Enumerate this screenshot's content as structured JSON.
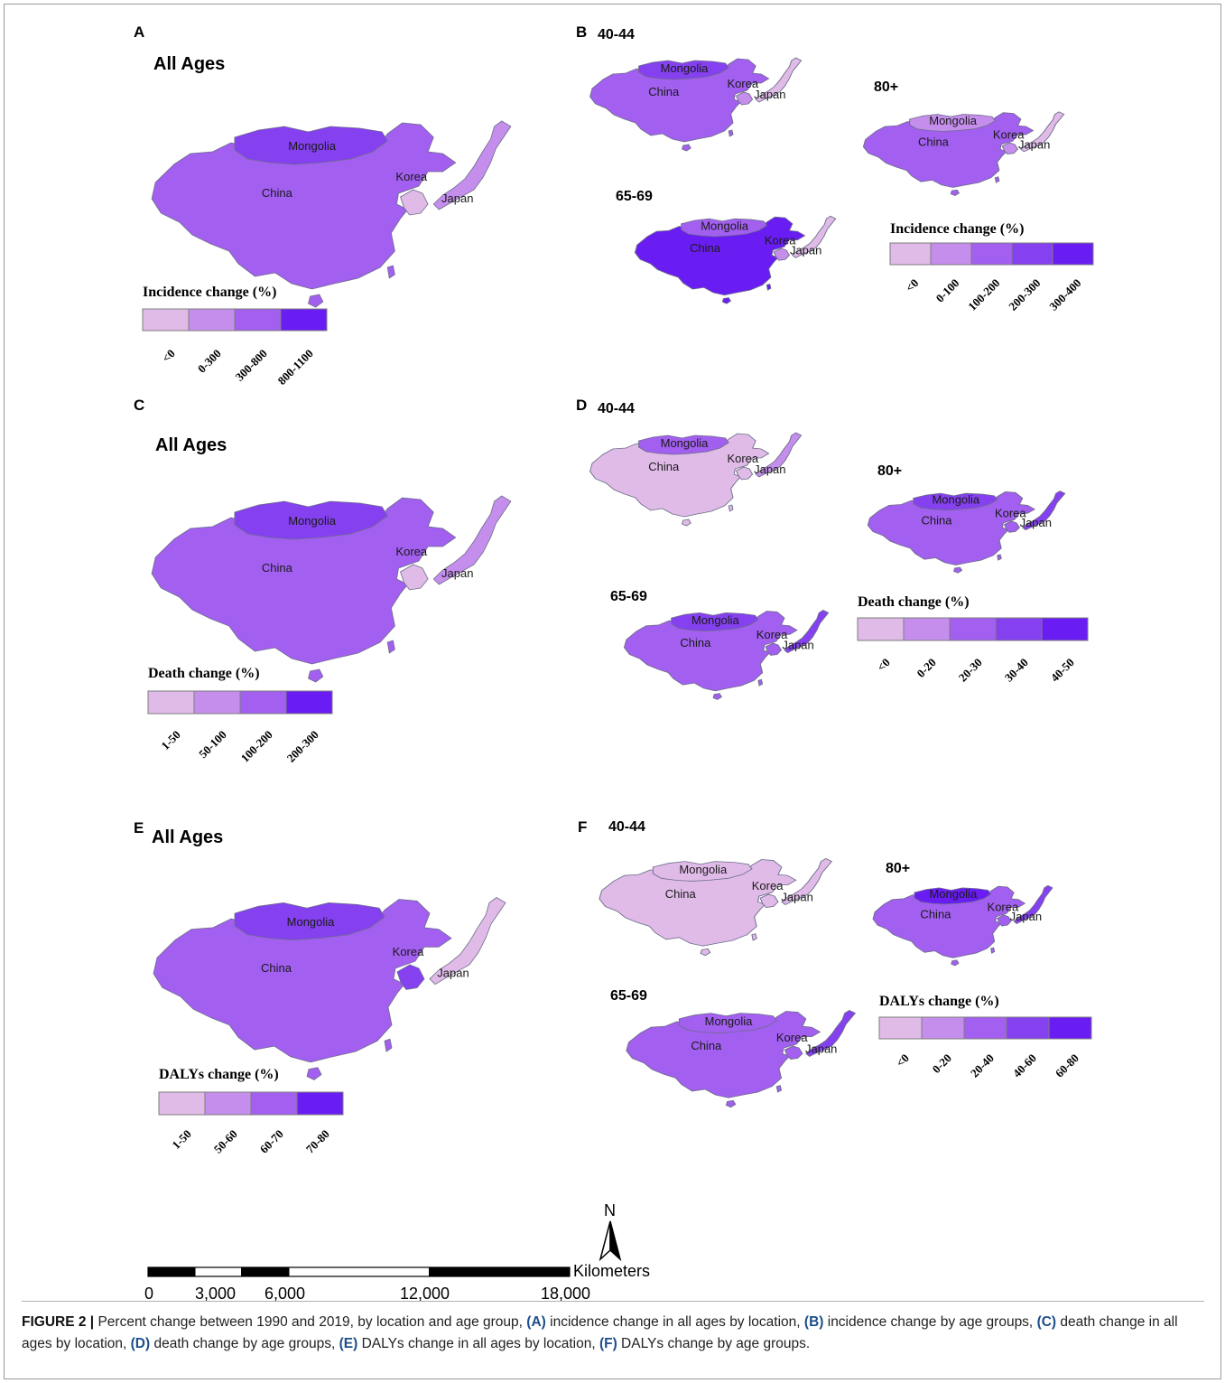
{
  "colors": {
    "c1": "#e0bbe8",
    "c2": "#c58eec",
    "c3": "#a25ff0",
    "c4": "#8540f0",
    "c5": "#6a1df2",
    "border": "#6e6e8a"
  },
  "panels": {
    "A": {
      "letter": "A",
      "title": "All Ages",
      "legend": {
        "title": "Incidence change (%)",
        "ticks": [
          "<0",
          "0-300",
          "300-800",
          "800-1100"
        ]
      }
    },
    "B": {
      "letter": "B",
      "maps": {
        "m1": "40-44",
        "m2": "80+",
        "m3": "65-69"
      },
      "legend": {
        "title": "Incidence change (%)",
        "ticks": [
          "<0",
          "0-100",
          "100-200",
          "200-300",
          "300-400"
        ]
      }
    },
    "C": {
      "letter": "C",
      "title": "All Ages",
      "legend": {
        "title": "Death change (%)",
        "ticks": [
          "1-50",
          "50-100",
          "100-200",
          "200-300"
        ]
      }
    },
    "D": {
      "letter": "D",
      "maps": {
        "m1": "40-44",
        "m2": "80+",
        "m3": "65-69"
      },
      "legend": {
        "title": "Death change (%)",
        "ticks": [
          "<0",
          "0-20",
          "20-30",
          "30-40",
          "40-50"
        ]
      }
    },
    "E": {
      "letter": "E",
      "title": "All Ages",
      "legend": {
        "title": "DALYs change (%)",
        "ticks": [
          "1-50",
          "50-60",
          "60-70",
          "70-80"
        ]
      }
    },
    "F": {
      "letter": "F",
      "maps": {
        "m1": "40-44",
        "m2": "80+",
        "m3": "65-69"
      },
      "legend": {
        "title": "DALYs change (%)",
        "ticks": [
          "<0",
          "0-20",
          "20-40",
          "40-60",
          "60-80"
        ]
      }
    }
  },
  "countries": {
    "mongolia": "Mongolia",
    "china": "China",
    "korea": "Korea",
    "japan": "Japan"
  },
  "maps": [
    {
      "id": "A",
      "fill": {
        "mongolia": "c4",
        "china": "c3",
        "korea": "c1",
        "japan": "c2"
      }
    },
    {
      "id": "B1",
      "fill": {
        "mongolia": "c4",
        "china": "c3",
        "korea": "c2",
        "japan": "c1"
      }
    },
    {
      "id": "B2",
      "fill": {
        "mongolia": "c2",
        "china": "c3",
        "korea": "c2",
        "japan": "c1"
      }
    },
    {
      "id": "B3",
      "fill": {
        "mongolia": "c3",
        "china": "c5",
        "korea": "c2",
        "japan": "c1"
      }
    },
    {
      "id": "C",
      "fill": {
        "mongolia": "c4",
        "china": "c3",
        "korea": "c1",
        "japan": "c2"
      }
    },
    {
      "id": "D1",
      "fill": {
        "mongolia": "c3",
        "china": "c1",
        "korea": "c1",
        "japan": "c2"
      }
    },
    {
      "id": "D2",
      "fill": {
        "mongolia": "c4",
        "china": "c3",
        "korea": "c3",
        "japan": "c4"
      }
    },
    {
      "id": "D3",
      "fill": {
        "mongolia": "c4",
        "china": "c3",
        "korea": "c3",
        "japan": "c4"
      }
    },
    {
      "id": "E",
      "fill": {
        "mongolia": "c4",
        "china": "c3",
        "korea": "c4",
        "japan": "c1"
      }
    },
    {
      "id": "F1",
      "fill": {
        "mongolia": "c1",
        "china": "c1",
        "korea": "c1",
        "japan": "c1"
      }
    },
    {
      "id": "F2",
      "fill": {
        "mongolia": "c5",
        "china": "c3",
        "korea": "c3",
        "japan": "c4"
      }
    },
    {
      "id": "F3",
      "fill": {
        "mongolia": "c3",
        "china": "c3",
        "korea": "c3",
        "japan": "c4"
      }
    }
  ],
  "north_arrow": "N",
  "scalebar": {
    "unit": "Kilometers",
    "ticks": [
      "0",
      "3,000",
      "6,000",
      "12,000",
      "18,000"
    ]
  },
  "caption": {
    "label": "FIGURE 2 |",
    "intro": " Percent change between 1990 and 2019, by location and age group, ",
    "parts": [
      {
        "key": "(A)",
        "text": " incidence change in all ages by location, "
      },
      {
        "key": "(B)",
        "text": " incidence change by age groups, "
      },
      {
        "key": "(C)",
        "text": " death change in all ages by location, "
      },
      {
        "key": "(D)",
        "text": " death change by age groups, "
      },
      {
        "key": "(E)",
        "text": " DALYs change in all ages by location, "
      },
      {
        "key": "(F)",
        "text": " DALYs change by age groups."
      }
    ]
  }
}
